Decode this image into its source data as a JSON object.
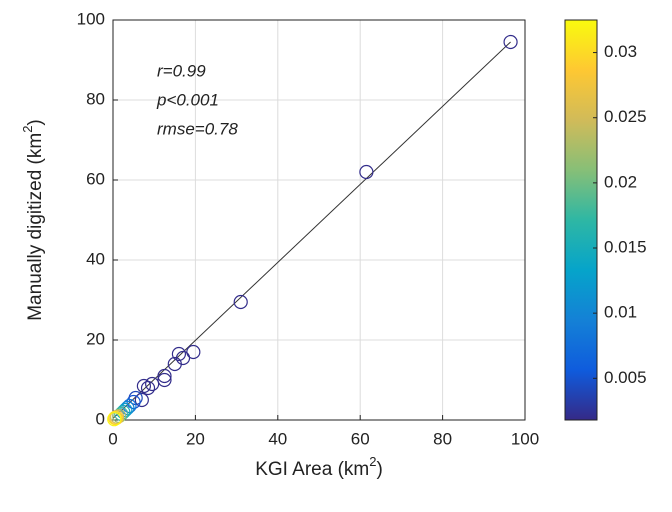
{
  "chart_data": {
    "type": "scatter",
    "xlabel": [
      "KGI Area (km",
      "2",
      ")"
    ],
    "ylabel": [
      "Manually digitized (km",
      "2",
      ")"
    ],
    "annotations": [
      "r=0.99",
      "p<0.001",
      "rmse=0.78"
    ],
    "xlim": [
      0,
      100
    ],
    "ylim": [
      0,
      100
    ],
    "xticks": [
      0,
      20,
      40,
      60,
      80,
      100
    ],
    "yticks": [
      0,
      20,
      40,
      60,
      80,
      100
    ],
    "grid": true,
    "marker_color_by": "density",
    "x": [
      96.5,
      61.5,
      31,
      19.5,
      17,
      16,
      15,
      12.5,
      12.5,
      9.5,
      8.5,
      7,
      7.5,
      5.5,
      5,
      4,
      3.5,
      3,
      2.5,
      2,
      1.5,
      1,
      0.8,
      0.5,
      0.3
    ],
    "y": [
      94.5,
      62,
      29.5,
      17,
      15.5,
      16.5,
      14,
      10,
      11,
      9,
      8,
      5,
      8.5,
      5.5,
      4.5,
      3.5,
      3,
      2.5,
      2,
      1.5,
      1,
      0.8,
      0.5,
      0.5,
      0.2
    ],
    "density": [
      0.002,
      0.002,
      0.002,
      0.002,
      0.002,
      0.002,
      0.002,
      0.002,
      0.002,
      0.002,
      0.002,
      0.002,
      0.002,
      0.004,
      0.005,
      0.008,
      0.01,
      0.012,
      0.015,
      0.018,
      0.022,
      0.025,
      0.028,
      0.03,
      0.032
    ],
    "fit_line": {
      "x": [
        0,
        96.5
      ],
      "y": [
        0.4,
        94.5
      ],
      "color": "#333333"
    },
    "colormap": [
      "#352a87",
      "#0f5cdd",
      "#1481d6",
      "#06a4ca",
      "#2eb7a4",
      "#87bf77",
      "#d1bb59",
      "#fec832",
      "#f9fb0e"
    ],
    "clim": [
      0.0018,
      0.0325
    ],
    "cticks": [
      0.005,
      0.01,
      0.015,
      0.02,
      0.025,
      0.03
    ]
  }
}
